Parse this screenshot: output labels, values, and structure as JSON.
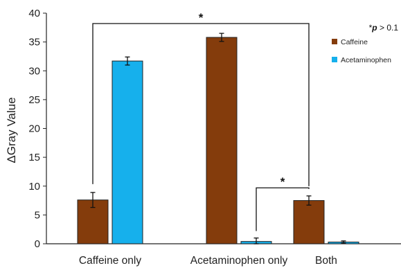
{
  "chart_data": {
    "type": "bar",
    "categories": [
      "Caffeine only",
      "Acetaminophen only",
      "Both"
    ],
    "series": [
      {
        "name": "Caffeine",
        "values": [
          7.6,
          35.8,
          7.5
        ],
        "errors": [
          1.3,
          0.7,
          0.8
        ],
        "color": "#843c0c"
      },
      {
        "name": "Acetaminophen",
        "values": [
          31.7,
          0.4,
          0.3
        ],
        "errors": [
          0.7,
          0.6,
          0.2
        ],
        "color": "#16b0ec"
      }
    ],
    "ylabel": "ΔGray Value",
    "ylim": [
      0,
      40
    ],
    "yticks": [
      "0",
      "5",
      "10",
      "15",
      "20",
      "25",
      "30",
      "35",
      "40"
    ],
    "grid": false,
    "legend": "top-right",
    "annotations": [
      {
        "star": "*",
        "from_category": 0,
        "to_category": 2,
        "y": 38.2
      },
      {
        "star": "*",
        "from_category": 1,
        "to_category": 2,
        "y": 9.7
      }
    ],
    "significance_note": {
      "star": "*",
      "symbol": "p",
      "text": " > 0.1"
    }
  }
}
